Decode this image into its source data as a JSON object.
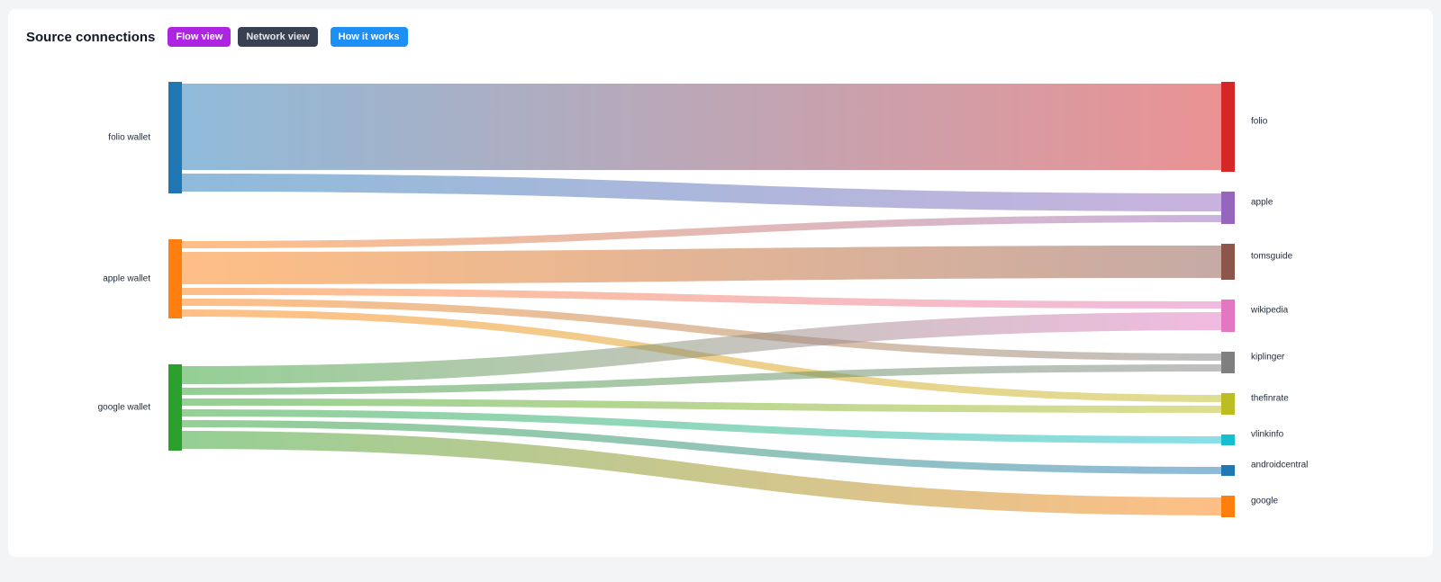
{
  "header": {
    "title": "Source connections",
    "buttons": [
      "Flow view",
      "Network view",
      "How it works"
    ]
  },
  "chart_data": {
    "type": "sankey",
    "nodes": [
      {
        "name": "folio wallet",
        "color": "#1f77b4",
        "side": "source"
      },
      {
        "name": "apple wallet",
        "color": "#ff7f0e",
        "side": "source"
      },
      {
        "name": "google wallet",
        "color": "#2ca02c",
        "side": "source"
      },
      {
        "name": "folio",
        "color": "#d62728",
        "side": "target"
      },
      {
        "name": "apple",
        "color": "#9467bd",
        "side": "target"
      },
      {
        "name": "tomsguide",
        "color": "#8c564b",
        "side": "target"
      },
      {
        "name": "wikipedia",
        "color": "#e377c2",
        "side": "target"
      },
      {
        "name": "kiplinger",
        "color": "#7f7f7f",
        "side": "target"
      },
      {
        "name": "thefinrate",
        "color": "#bcbd22",
        "side": "target"
      },
      {
        "name": "vlinkinfo",
        "color": "#17becf",
        "side": "target"
      },
      {
        "name": "androidcentral",
        "color": "#1f77b4",
        "side": "target"
      },
      {
        "name": "google",
        "color": "#ff7f0e",
        "side": "target"
      }
    ],
    "links": [
      {
        "source": "folio wallet",
        "target": "folio",
        "value": 12
      },
      {
        "source": "folio wallet",
        "target": "apple",
        "value": 2.5
      },
      {
        "source": "apple wallet",
        "target": "apple",
        "value": 1
      },
      {
        "source": "apple wallet",
        "target": "tomsguide",
        "value": 4.5
      },
      {
        "source": "apple wallet",
        "target": "wikipedia",
        "value": 1
      },
      {
        "source": "apple wallet",
        "target": "kiplinger",
        "value": 1
      },
      {
        "source": "apple wallet",
        "target": "thefinrate",
        "value": 1
      },
      {
        "source": "google wallet",
        "target": "wikipedia",
        "value": 2.5
      },
      {
        "source": "google wallet",
        "target": "kiplinger",
        "value": 1
      },
      {
        "source": "google wallet",
        "target": "thefinrate",
        "value": 1
      },
      {
        "source": "google wallet",
        "target": "vlinkinfo",
        "value": 1
      },
      {
        "source": "google wallet",
        "target": "androidcentral",
        "value": 1
      },
      {
        "source": "google wallet",
        "target": "google",
        "value": 2.5
      }
    ]
  }
}
